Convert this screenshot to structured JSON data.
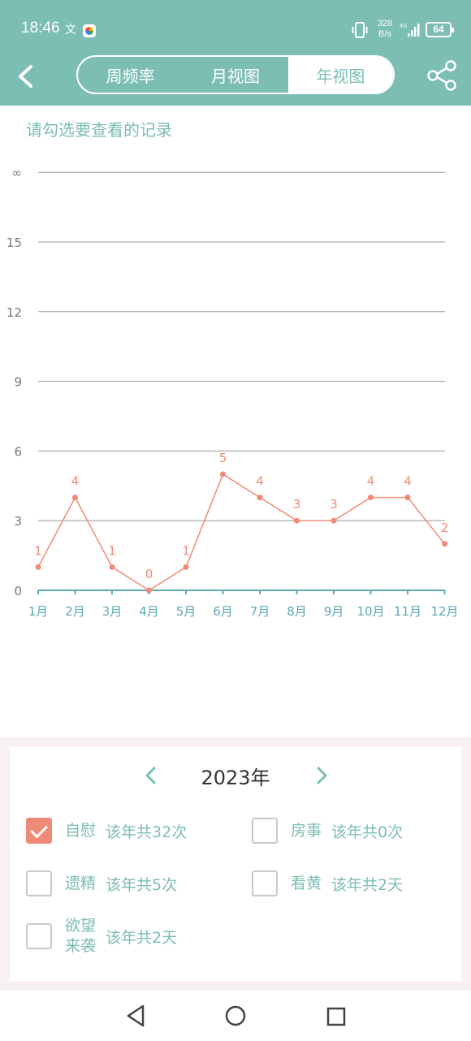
{
  "status_bar": {
    "time": "18:46",
    "network_speed_value": "328",
    "network_speed_unit": "B/s",
    "network_type": "4G",
    "battery": "64"
  },
  "header": {
    "tabs": [
      {
        "label": "周频率",
        "active": false
      },
      {
        "label": "月视图",
        "active": false
      },
      {
        "label": "年视图",
        "active": true
      }
    ]
  },
  "prompt": "请勾选要查看的记录",
  "chart_data": {
    "type": "line",
    "categories": [
      "1月",
      "2月",
      "3月",
      "4月",
      "5月",
      "6月",
      "7月",
      "8月",
      "9月",
      "10月",
      "11月",
      "12月"
    ],
    "values": [
      1,
      4,
      1,
      0,
      1,
      5,
      4,
      3,
      3,
      4,
      4,
      2
    ],
    "y_ticks": [
      "0",
      "3",
      "6",
      "9",
      "12",
      "15",
      "∞"
    ],
    "ylim": [
      0,
      18
    ],
    "grid": true,
    "line_color": "#f08a78",
    "axis_color": "#5aa9b3",
    "grid_color": "#999999"
  },
  "year_selector": {
    "year": "2023年"
  },
  "records": [
    {
      "label": "自慰",
      "summary": "该年共32次",
      "checked": true
    },
    {
      "label": "房事",
      "summary": "该年共0次",
      "checked": false
    },
    {
      "label": "遗精",
      "summary": "该年共5次",
      "checked": false
    },
    {
      "label": "看黄",
      "summary": "该年共2天",
      "checked": false
    },
    {
      "label": "欲望来袭",
      "label_line1": "欲望",
      "label_line2": "来袭",
      "summary": "该年共2天",
      "checked": false
    }
  ],
  "colors": {
    "header": "#7cbdb4",
    "accent": "#7cbdb4",
    "line": "#f08a78",
    "checked": "#f08a78"
  }
}
